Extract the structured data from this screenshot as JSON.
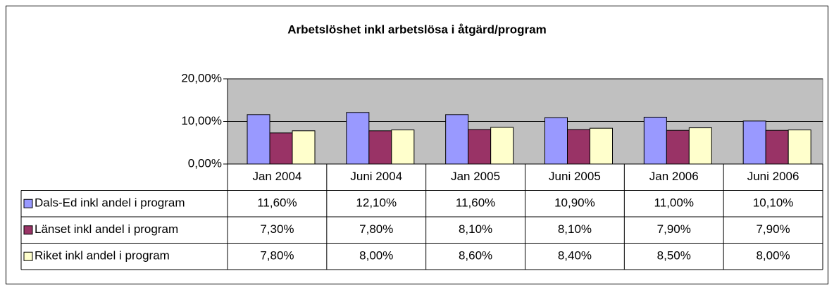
{
  "chart_data": {
    "type": "bar",
    "title": "Arbetslöshet inkl arbetslösa i åtgärd/program",
    "categories": [
      "Jan 2004",
      "Juni 2004",
      "Jan 2005",
      "Juni 2005",
      "Jan 2006",
      "Juni 2006"
    ],
    "series": [
      {
        "name": "Dals-Ed inkl andel i program",
        "color": "#9999ff",
        "values": [
          11.6,
          12.1,
          11.6,
          10.9,
          11.0,
          10.1
        ],
        "value_labels": [
          "11,60%",
          "12,10%",
          "11,60%",
          "10,90%",
          "11,00%",
          "10,10%"
        ]
      },
      {
        "name": "Länset inkl andel i program",
        "color": "#993366",
        "values": [
          7.3,
          7.8,
          8.1,
          8.1,
          7.9,
          7.9
        ],
        "value_labels": [
          "7,30%",
          "7,80%",
          "8,10%",
          "8,10%",
          "7,90%",
          "7,90%"
        ]
      },
      {
        "name": "Riket inkl andel i program",
        "color": "#ffffcc",
        "values": [
          7.8,
          8.0,
          8.6,
          8.4,
          8.5,
          8.0
        ],
        "value_labels": [
          "7,80%",
          "8,00%",
          "8,60%",
          "8,40%",
          "8,50%",
          "8,00%"
        ]
      }
    ],
    "ylim": [
      0,
      20
    ],
    "yticks": [
      {
        "value": 0,
        "label": "0,00%"
      },
      {
        "value": 10,
        "label": "10,00%"
      },
      {
        "value": 20,
        "label": "20,00%"
      }
    ],
    "grid": true,
    "plot_background": "#c0c0c0"
  }
}
